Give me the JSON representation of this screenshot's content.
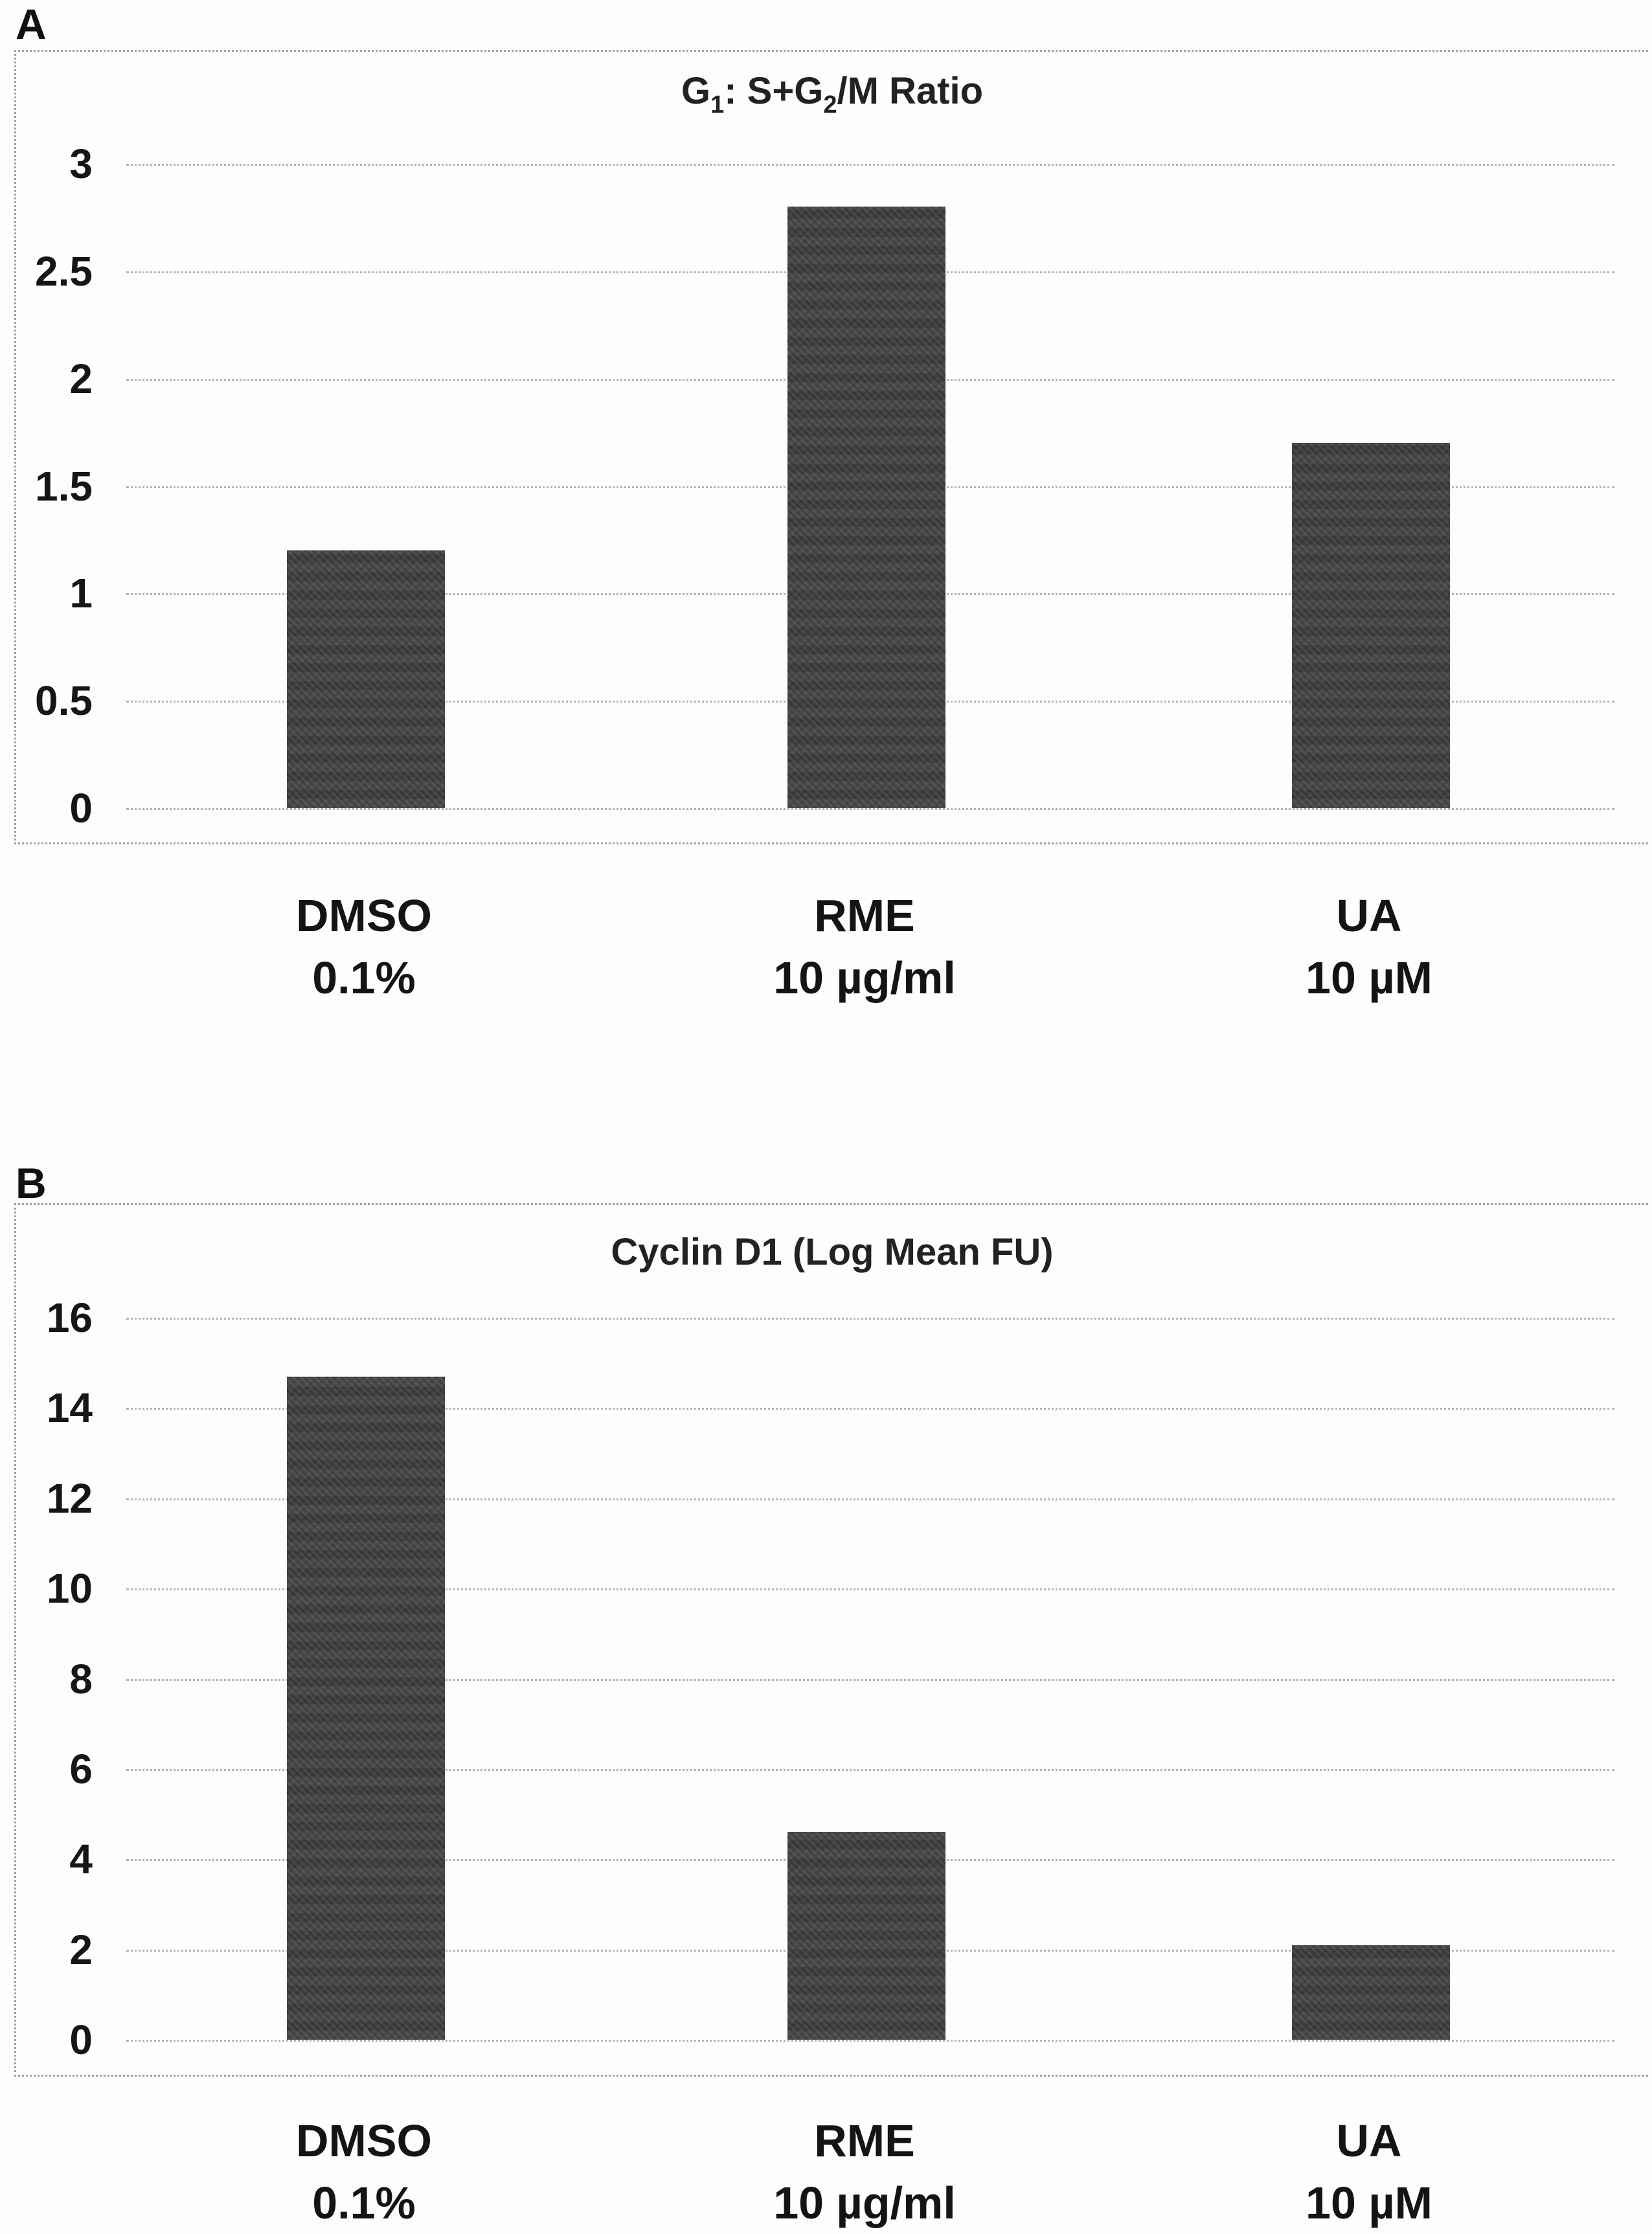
{
  "colors": {
    "bar": "#3f3f3f",
    "gridline": "#b3b3b3",
    "frame": "#9f9f9f",
    "text": "#1a1a1a",
    "background": "#fdfdfd"
  },
  "chart_data": [
    {
      "type": "bar",
      "panel": "A",
      "title": "G1: S+G2/M Ratio",
      "title_runs": [
        {
          "text": "G",
          "sub": false
        },
        {
          "text": "1",
          "sub": true
        },
        {
          "text": ": S+G",
          "sub": false
        },
        {
          "text": "2",
          "sub": true
        },
        {
          "text": "/M Ratio",
          "sub": false
        }
      ],
      "categories": [
        {
          "line1": "DMSO",
          "line2": "0.1%"
        },
        {
          "line1": "RME",
          "line2": "10 µg/ml"
        },
        {
          "line1": "UA",
          "line2": "10 µM"
        }
      ],
      "values": [
        1.2,
        2.8,
        1.7
      ],
      "ylim": [
        0,
        3
      ],
      "yticks": [
        3,
        2.5,
        2,
        1.5,
        1,
        0.5,
        0
      ],
      "ytick_labels": [
        "3",
        "2.5",
        "2",
        "1.5",
        "1",
        "0.5",
        "0"
      ],
      "xlabel": "",
      "ylabel": "",
      "grid": true,
      "legend": null
    },
    {
      "type": "bar",
      "panel": "B",
      "title": "Cyclin D1 (Log Mean FU)",
      "categories": [
        {
          "line1": "DMSO",
          "line2": "0.1%"
        },
        {
          "line1": "RME",
          "line2": "10 µg/ml"
        },
        {
          "line1": "UA",
          "line2": "10 µM"
        }
      ],
      "values": [
        14.7,
        4.6,
        2.1
      ],
      "ylim": [
        0,
        16
      ],
      "yticks": [
        16,
        14,
        12,
        10,
        8,
        6,
        4,
        2,
        0
      ],
      "ytick_labels": [
        "16",
        "14",
        "12",
        "10",
        "8",
        "6",
        "4",
        "2",
        "0"
      ],
      "xlabel": "",
      "ylabel": "",
      "grid": true,
      "legend": null
    }
  ]
}
